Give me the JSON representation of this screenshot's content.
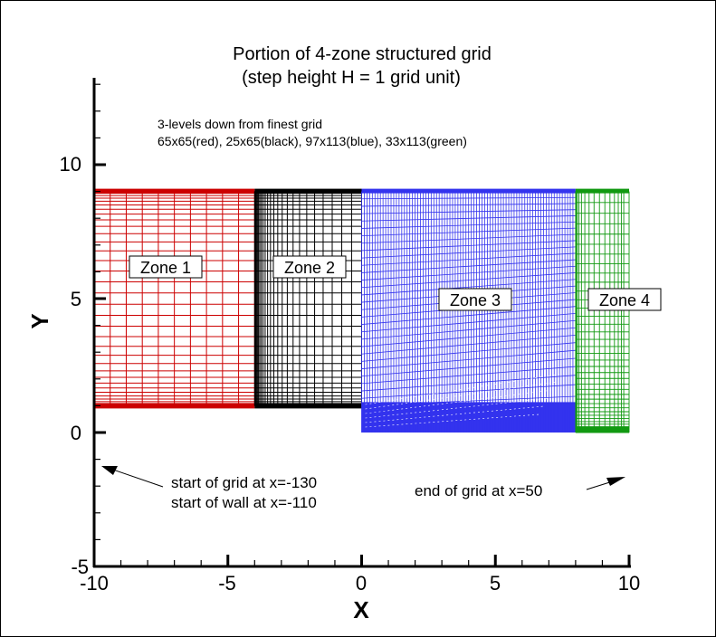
{
  "chart_data": {
    "type": "diagram",
    "title": [
      "Portion of 4-zone structured grid",
      "(step height H = 1 grid unit)"
    ],
    "subtitle": [
      "3-levels down from finest grid",
      "65x65(red), 25x65(black), 97x113(blue), 33x113(green)"
    ],
    "xlabel": "X",
    "ylabel": "Y",
    "xlim": [
      -10,
      10
    ],
    "ylim": [
      -5,
      13
    ],
    "x_ticks": [
      "-10",
      "-5",
      "0",
      "5",
      "10"
    ],
    "y_ticks": [
      "-5",
      "0",
      "5",
      "10"
    ],
    "zones": [
      {
        "label": "Zone 1",
        "color": "#cc0000",
        "grid": "65x65",
        "x_range": [
          -10,
          -4
        ],
        "y_range": [
          1,
          9
        ]
      },
      {
        "label": "Zone 2",
        "color": "#000000",
        "grid": "25x65",
        "x_range": [
          -4,
          0
        ],
        "y_range": [
          1,
          9
        ]
      },
      {
        "label": "Zone 3",
        "color": "#3333ee",
        "grid": "97x113",
        "x_range": [
          0,
          8
        ],
        "y_range": [
          0,
          9
        ]
      },
      {
        "label": "Zone 4",
        "color": "#119911",
        "grid": "33x113",
        "x_range": [
          8,
          10
        ],
        "y_range": [
          0,
          9
        ]
      }
    ],
    "annotations": [
      {
        "text": [
          "start of grid at x=-130",
          "start of wall at x=-110"
        ],
        "arrow": "left"
      },
      {
        "text": [
          "end of grid at x=50"
        ],
        "arrow": "right"
      }
    ]
  },
  "labels": {
    "title1": "Portion of 4-zone structured grid",
    "title2": "(step height H = 1 grid unit)",
    "note1": "3-levels down from finest grid",
    "note2": "65x65(red), 25x65(black), 97x113(blue), 33x113(green)",
    "zone1": "Zone 1",
    "zone2": "Zone 2",
    "zone3": "Zone 3",
    "zone4": "Zone 4",
    "ann_left1": "start of grid at x=-130",
    "ann_left2": "start of wall at x=-110",
    "ann_right": "end of grid at x=50",
    "xlabel": "X",
    "ylabel": "Y",
    "xt0": "-10",
    "xt1": "-5",
    "xt2": "0",
    "xt3": "5",
    "xt4": "10",
    "yt0": "-5",
    "yt1": "0",
    "yt2": "5",
    "yt3": "10"
  },
  "colors": {
    "zone1": "#cc0000",
    "zone2": "#000000",
    "zone3": "#3333ee",
    "zone4": "#119911"
  }
}
